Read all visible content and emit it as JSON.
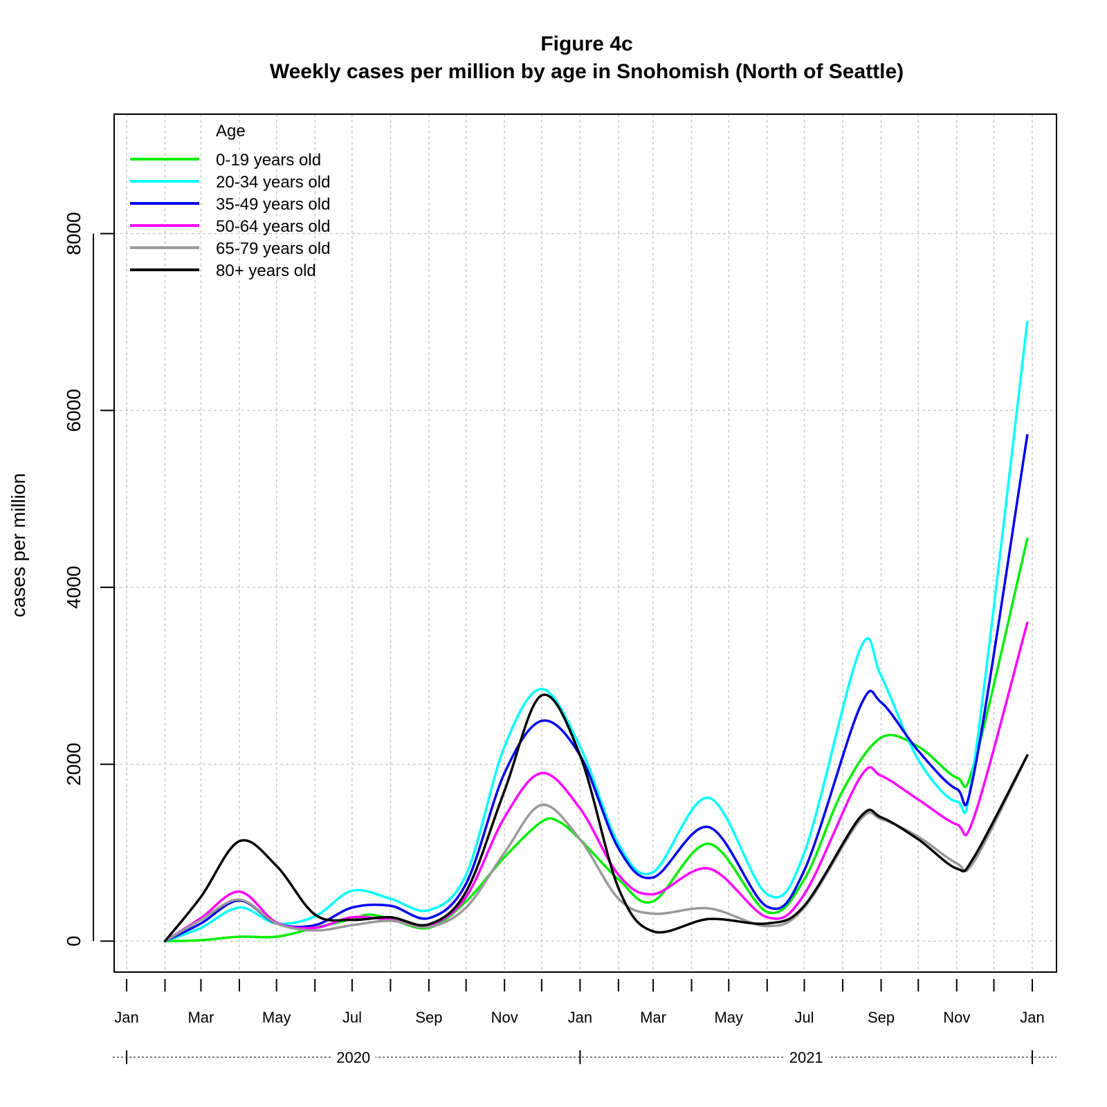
{
  "chart_data": {
    "type": "line",
    "title": "Figure 4c",
    "subtitle": "Weekly cases per million by age in Snohomish (North of Seattle)",
    "xlabel": "",
    "ylabel": "cases per million",
    "x_unit": "date",
    "xlim": [
      "2020-01-01",
      "2022-01-01"
    ],
    "ylim": [
      -350,
      9350
    ],
    "y_ticks": [
      0,
      2000,
      4000,
      6000,
      8000
    ],
    "x_tick_dates": [
      "2020-01-01",
      "2020-02-01",
      "2020-03-01",
      "2020-04-01",
      "2020-05-01",
      "2020-06-01",
      "2020-07-01",
      "2020-08-01",
      "2020-09-01",
      "2020-10-01",
      "2020-11-01",
      "2020-12-01",
      "2021-01-01",
      "2021-02-01",
      "2021-03-01",
      "2021-04-01",
      "2021-05-01",
      "2021-06-01",
      "2021-07-01",
      "2021-08-01",
      "2021-09-01",
      "2021-10-01",
      "2021-11-01",
      "2021-12-01",
      "2022-01-01"
    ],
    "x_labels": [
      {
        "date": "2020-01-01",
        "label": "Jan"
      },
      {
        "date": "2020-03-01",
        "label": "Mar"
      },
      {
        "date": "2020-05-01",
        "label": "May"
      },
      {
        "date": "2020-07-01",
        "label": "Jul"
      },
      {
        "date": "2020-09-01",
        "label": "Sep"
      },
      {
        "date": "2020-11-01",
        "label": "Nov"
      },
      {
        "date": "2021-01-01",
        "label": "Jan"
      },
      {
        "date": "2021-03-01",
        "label": "Mar"
      },
      {
        "date": "2021-05-01",
        "label": "May"
      },
      {
        "date": "2021-07-01",
        "label": "Jul"
      },
      {
        "date": "2021-09-01",
        "label": "Sep"
      },
      {
        "date": "2021-11-01",
        "label": "Nov"
      },
      {
        "date": "2022-01-01",
        "label": "Jan"
      }
    ],
    "years": [
      {
        "label": "2020",
        "start": "2020-01-01",
        "end": "2021-01-01"
      },
      {
        "label": "2021",
        "start": "2021-01-01",
        "end": "2022-01-01"
      }
    ],
    "grid": true,
    "legend": {
      "title": "Age",
      "position": "top-left"
    },
    "series": [
      {
        "name": "0-19 years old",
        "color": "#00ee00",
        "points": [
          [
            "2020-02-01",
            0
          ],
          [
            "2020-03-01",
            10
          ],
          [
            "2020-04-01",
            50
          ],
          [
            "2020-05-01",
            50
          ],
          [
            "2020-06-01",
            150
          ],
          [
            "2020-07-01",
            250
          ],
          [
            "2020-07-15",
            300
          ],
          [
            "2020-08-01",
            250
          ],
          [
            "2020-09-01",
            150
          ],
          [
            "2020-10-01",
            450
          ],
          [
            "2020-11-01",
            950
          ],
          [
            "2020-12-01",
            1350
          ],
          [
            "2020-12-15",
            1350
          ],
          [
            "2021-01-01",
            1150
          ],
          [
            "2021-02-01",
            700
          ],
          [
            "2021-03-01",
            450
          ],
          [
            "2021-04-15",
            1100
          ],
          [
            "2021-06-01",
            330
          ],
          [
            "2021-07-01",
            700
          ],
          [
            "2021-08-01",
            1700
          ],
          [
            "2021-09-01",
            2300
          ],
          [
            "2021-10-01",
            2200
          ],
          [
            "2021-11-01",
            1850
          ],
          [
            "2021-11-15",
            2000
          ],
          [
            "2021-12-28",
            4550
          ]
        ]
      },
      {
        "name": "20-34 years old",
        "color": "#00ffff",
        "points": [
          [
            "2020-02-01",
            0
          ],
          [
            "2020-03-01",
            150
          ],
          [
            "2020-04-01",
            380
          ],
          [
            "2020-05-01",
            200
          ],
          [
            "2020-06-01",
            280
          ],
          [
            "2020-07-01",
            570
          ],
          [
            "2020-08-01",
            480
          ],
          [
            "2020-09-01",
            350
          ],
          [
            "2020-10-01",
            750
          ],
          [
            "2020-11-01",
            2200
          ],
          [
            "2020-12-01",
            2850
          ],
          [
            "2021-01-01",
            2200
          ],
          [
            "2021-02-01",
            1100
          ],
          [
            "2021-03-01",
            780
          ],
          [
            "2021-04-15",
            1620
          ],
          [
            "2021-06-01",
            530
          ],
          [
            "2021-07-01",
            1000
          ],
          [
            "2021-08-15",
            3300
          ],
          [
            "2021-09-01",
            3000
          ],
          [
            "2021-10-01",
            2050
          ],
          [
            "2021-11-01",
            1580
          ],
          [
            "2021-11-15",
            2000
          ],
          [
            "2021-12-28",
            7000
          ]
        ]
      },
      {
        "name": "35-49 years old",
        "color": "#0000ee",
        "points": [
          [
            "2020-02-01",
            0
          ],
          [
            "2020-03-01",
            200
          ],
          [
            "2020-04-01",
            460
          ],
          [
            "2020-05-01",
            200
          ],
          [
            "2020-06-01",
            180
          ],
          [
            "2020-07-01",
            380
          ],
          [
            "2020-08-01",
            400
          ],
          [
            "2020-09-01",
            260
          ],
          [
            "2020-10-01",
            650
          ],
          [
            "2020-11-01",
            1900
          ],
          [
            "2020-12-01",
            2490
          ],
          [
            "2021-01-01",
            2100
          ],
          [
            "2021-02-01",
            1050
          ],
          [
            "2021-03-01",
            720
          ],
          [
            "2021-04-15",
            1290
          ],
          [
            "2021-06-01",
            390
          ],
          [
            "2021-07-01",
            800
          ],
          [
            "2021-08-15",
            2650
          ],
          [
            "2021-09-01",
            2700
          ],
          [
            "2021-10-01",
            2150
          ],
          [
            "2021-11-01",
            1720
          ],
          [
            "2021-11-15",
            1900
          ],
          [
            "2021-12-28",
            5720
          ]
        ]
      },
      {
        "name": "50-64 years old",
        "color": "#ff00ff",
        "points": [
          [
            "2020-02-01",
            0
          ],
          [
            "2020-03-01",
            260
          ],
          [
            "2020-04-01",
            560
          ],
          [
            "2020-05-01",
            210
          ],
          [
            "2020-06-01",
            150
          ],
          [
            "2020-07-01",
            270
          ],
          [
            "2020-08-01",
            240
          ],
          [
            "2020-09-01",
            180
          ],
          [
            "2020-10-01",
            500
          ],
          [
            "2020-11-01",
            1400
          ],
          [
            "2020-12-01",
            1900
          ],
          [
            "2021-01-01",
            1500
          ],
          [
            "2021-02-01",
            750
          ],
          [
            "2021-03-01",
            530
          ],
          [
            "2021-04-15",
            820
          ],
          [
            "2021-06-01",
            270
          ],
          [
            "2021-07-01",
            530
          ],
          [
            "2021-08-15",
            1850
          ],
          [
            "2021-09-01",
            1870
          ],
          [
            "2021-10-01",
            1600
          ],
          [
            "2021-11-01",
            1320
          ],
          [
            "2021-11-15",
            1400
          ],
          [
            "2021-12-28",
            3600
          ]
        ]
      },
      {
        "name": "65-79 years old",
        "color": "#999999",
        "points": [
          [
            "2020-02-01",
            0
          ],
          [
            "2020-03-01",
            240
          ],
          [
            "2020-04-01",
            470
          ],
          [
            "2020-05-01",
            200
          ],
          [
            "2020-06-01",
            120
          ],
          [
            "2020-07-01",
            180
          ],
          [
            "2020-08-01",
            230
          ],
          [
            "2020-09-01",
            160
          ],
          [
            "2020-10-01",
            380
          ],
          [
            "2020-11-01",
            1000
          ],
          [
            "2020-12-01",
            1540
          ],
          [
            "2021-01-01",
            1150
          ],
          [
            "2021-02-01",
            480
          ],
          [
            "2021-03-01",
            310
          ],
          [
            "2021-04-15",
            370
          ],
          [
            "2021-06-01",
            170
          ],
          [
            "2021-07-01",
            380
          ],
          [
            "2021-08-15",
            1370
          ],
          [
            "2021-09-01",
            1380
          ],
          [
            "2021-10-01",
            1180
          ],
          [
            "2021-11-01",
            880
          ],
          [
            "2021-11-15",
            900
          ],
          [
            "2021-12-28",
            2100
          ]
        ]
      },
      {
        "name": "80+ years old",
        "color": "#000000",
        "points": [
          [
            "2020-02-01",
            0
          ],
          [
            "2020-03-01",
            500
          ],
          [
            "2020-04-01",
            1130
          ],
          [
            "2020-05-01",
            850
          ],
          [
            "2020-06-01",
            300
          ],
          [
            "2020-07-01",
            240
          ],
          [
            "2020-08-01",
            270
          ],
          [
            "2020-09-01",
            190
          ],
          [
            "2020-10-01",
            560
          ],
          [
            "2020-11-01",
            1700
          ],
          [
            "2020-12-01",
            2780
          ],
          [
            "2021-01-01",
            2100
          ],
          [
            "2021-02-01",
            600
          ],
          [
            "2021-03-01",
            110
          ],
          [
            "2021-04-15",
            250
          ],
          [
            "2021-06-01",
            200
          ],
          [
            "2021-07-01",
            400
          ],
          [
            "2021-08-15",
            1400
          ],
          [
            "2021-09-01",
            1400
          ],
          [
            "2021-10-01",
            1150
          ],
          [
            "2021-11-01",
            820
          ],
          [
            "2021-11-15",
            950
          ],
          [
            "2021-12-28",
            2100
          ]
        ]
      }
    ]
  }
}
